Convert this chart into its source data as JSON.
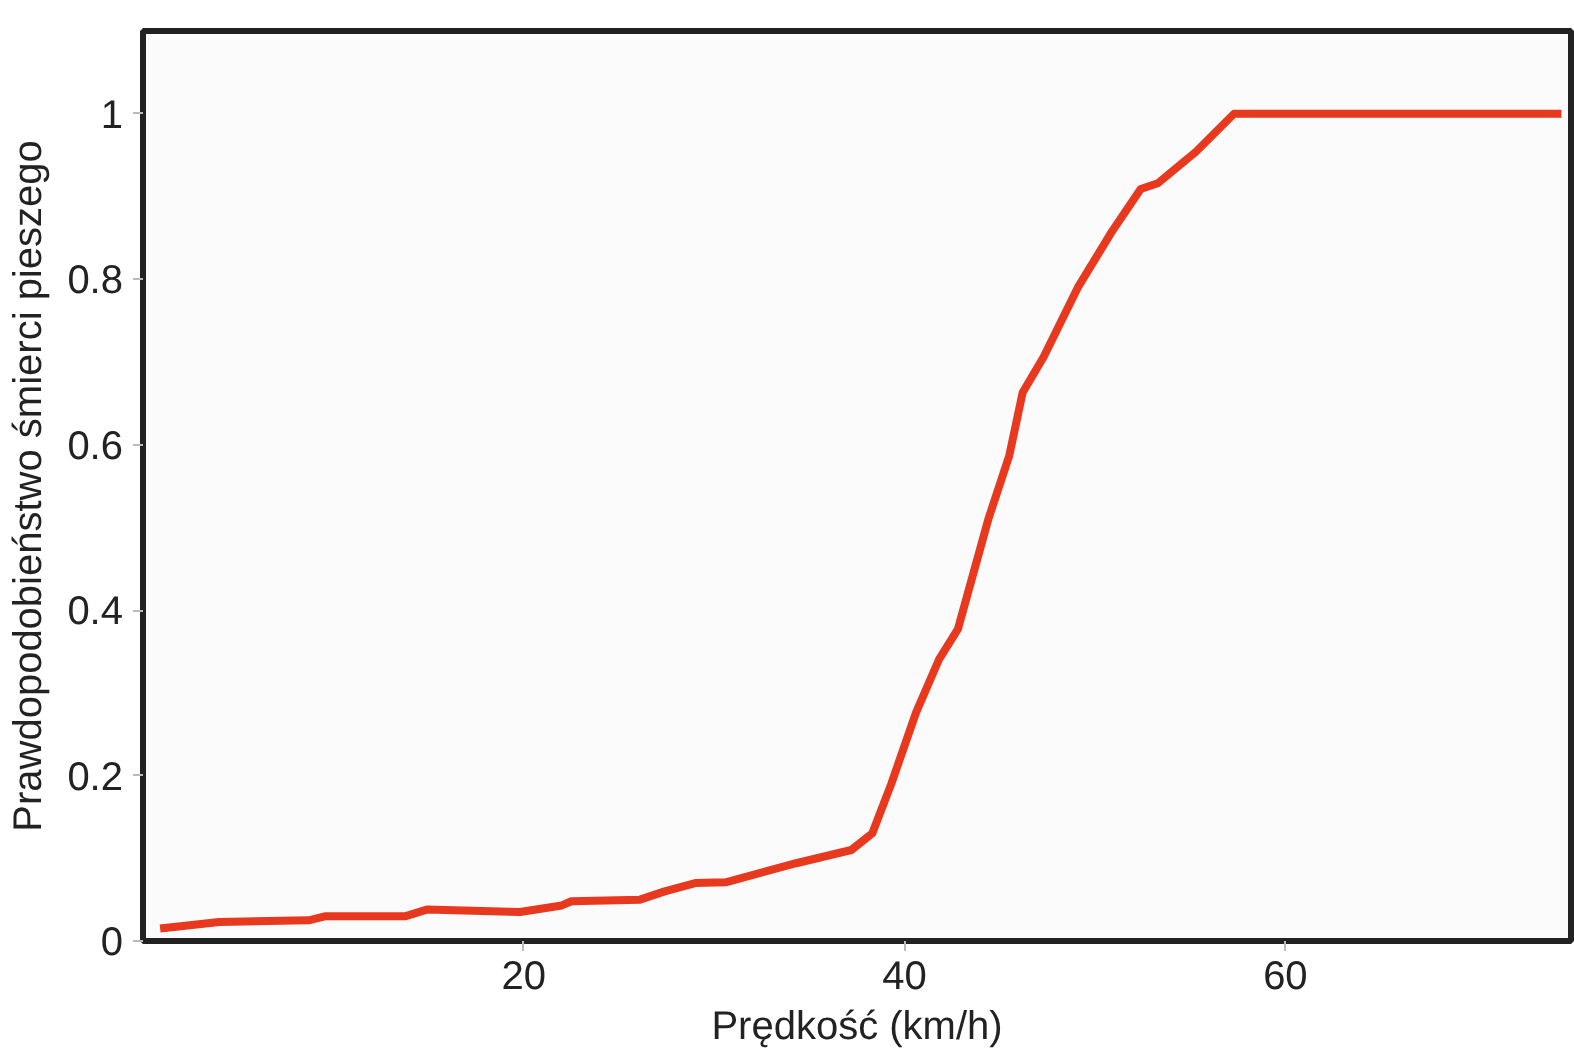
{
  "chart_data": {
    "type": "line",
    "xlabel": "Prędkość (km/h)",
    "ylabel": "Prawdopodobieństwo śmierci pieszego",
    "x": [
      0.9,
      4,
      8.7,
      9.6,
      13.8,
      14.9,
      19.8,
      22,
      22.5,
      26.1,
      27.4,
      29,
      30.6,
      34.3,
      37.2,
      38.3,
      39.3,
      40.6,
      41.8,
      42.8,
      44.4,
      45.5,
      46.2,
      47.3,
      49.1,
      50.9,
      52.4,
      53.3,
      55.3,
      57.3,
      74.5
    ],
    "series": [
      {
        "color": "#e8391f",
        "values": [
          0.015,
          0.023,
          0.025,
          0.03,
          0.03,
          0.038,
          0.035,
          0.043,
          0.048,
          0.05,
          0.06,
          0.07,
          0.071,
          0.094,
          0.11,
          0.13,
          0.19,
          0.276,
          0.34,
          0.377,
          0.51,
          0.587,
          0.663,
          0.706,
          0.79,
          0.858,
          0.909,
          0.916,
          0.954,
          1.0,
          1.0
        ]
      }
    ],
    "xlim": [
      0,
      75
    ],
    "ylim": [
      0,
      1.1
    ],
    "xticks": [
      20,
      40,
      60
    ],
    "yticks": [
      0,
      0.2,
      0.4,
      0.6,
      0.8,
      1
    ],
    "grid": false,
    "marker": "none",
    "line_style": "solid"
  }
}
